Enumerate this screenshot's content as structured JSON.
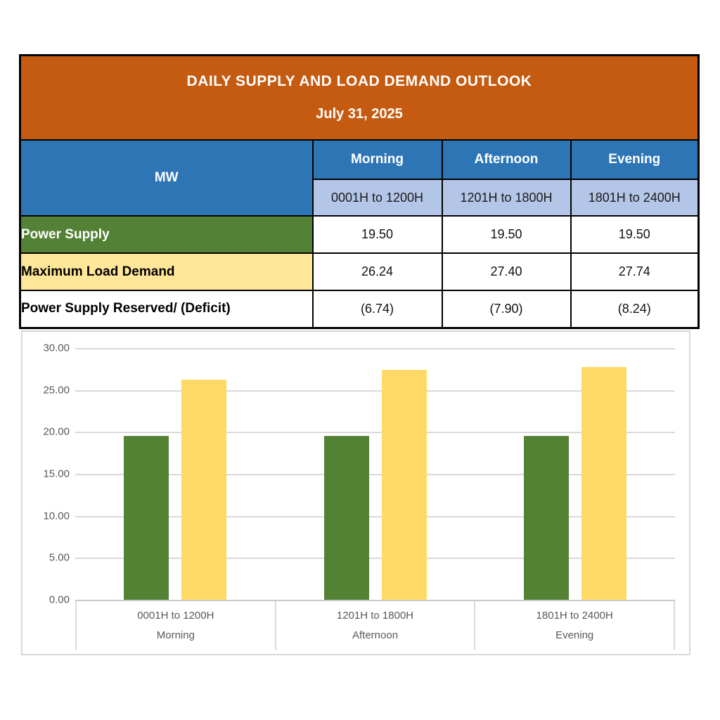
{
  "table": {
    "title": "DAILY SUPPLY AND LOAD DEMAND OUTLOOK",
    "date": "July 31, 2025",
    "unit_header": "MW",
    "periods": [
      {
        "name": "Morning",
        "range": "0001H to 1200H"
      },
      {
        "name": "Afternoon",
        "range": "1201H to 1800H"
      },
      {
        "name": "Evening",
        "range": "1801H to 2400H"
      }
    ],
    "rows": [
      {
        "label": "Power Supply",
        "values": [
          "19.50",
          "19.50",
          "19.50"
        ]
      },
      {
        "label": "Maximum Load Demand",
        "values": [
          "26.24",
          "27.40",
          "27.74"
        ]
      },
      {
        "label": "Power Supply Reserved/ (Deficit)",
        "values": [
          "(6.74)",
          "(7.90)",
          "(8.24)"
        ]
      }
    ]
  },
  "colors": {
    "header_orange": "#C55A11",
    "header_blue": "#2E75B6",
    "subheader_light_blue": "#B4C6E7",
    "supply_green": "#538135",
    "demand_yellow": "#FFE699",
    "bar_green": "#548235",
    "bar_yellow": "#FFD966",
    "gridline_gray": "#D9D9D9",
    "axis_text_gray": "#595959",
    "table_border": "#000000"
  },
  "chart_data": {
    "type": "bar",
    "categories": [
      {
        "range": "0001H to 1200H",
        "period": "Morning"
      },
      {
        "range": "1201H to 1800H",
        "period": "Afternoon"
      },
      {
        "range": "1801H to 2400H",
        "period": "Evening"
      }
    ],
    "series": [
      {
        "name": "Power Supply",
        "color": "#548235",
        "values": [
          19.5,
          19.5,
          19.5
        ]
      },
      {
        "name": "Maximum Load Demand",
        "color": "#FFD966",
        "values": [
          26.24,
          27.4,
          27.74
        ]
      }
    ],
    "title": "",
    "xlabel": "",
    "ylabel": "",
    "ylim": [
      0,
      30
    ],
    "ytick_step": 5,
    "ytick_format_decimals": 2,
    "grid": true,
    "legend_position": "none"
  }
}
